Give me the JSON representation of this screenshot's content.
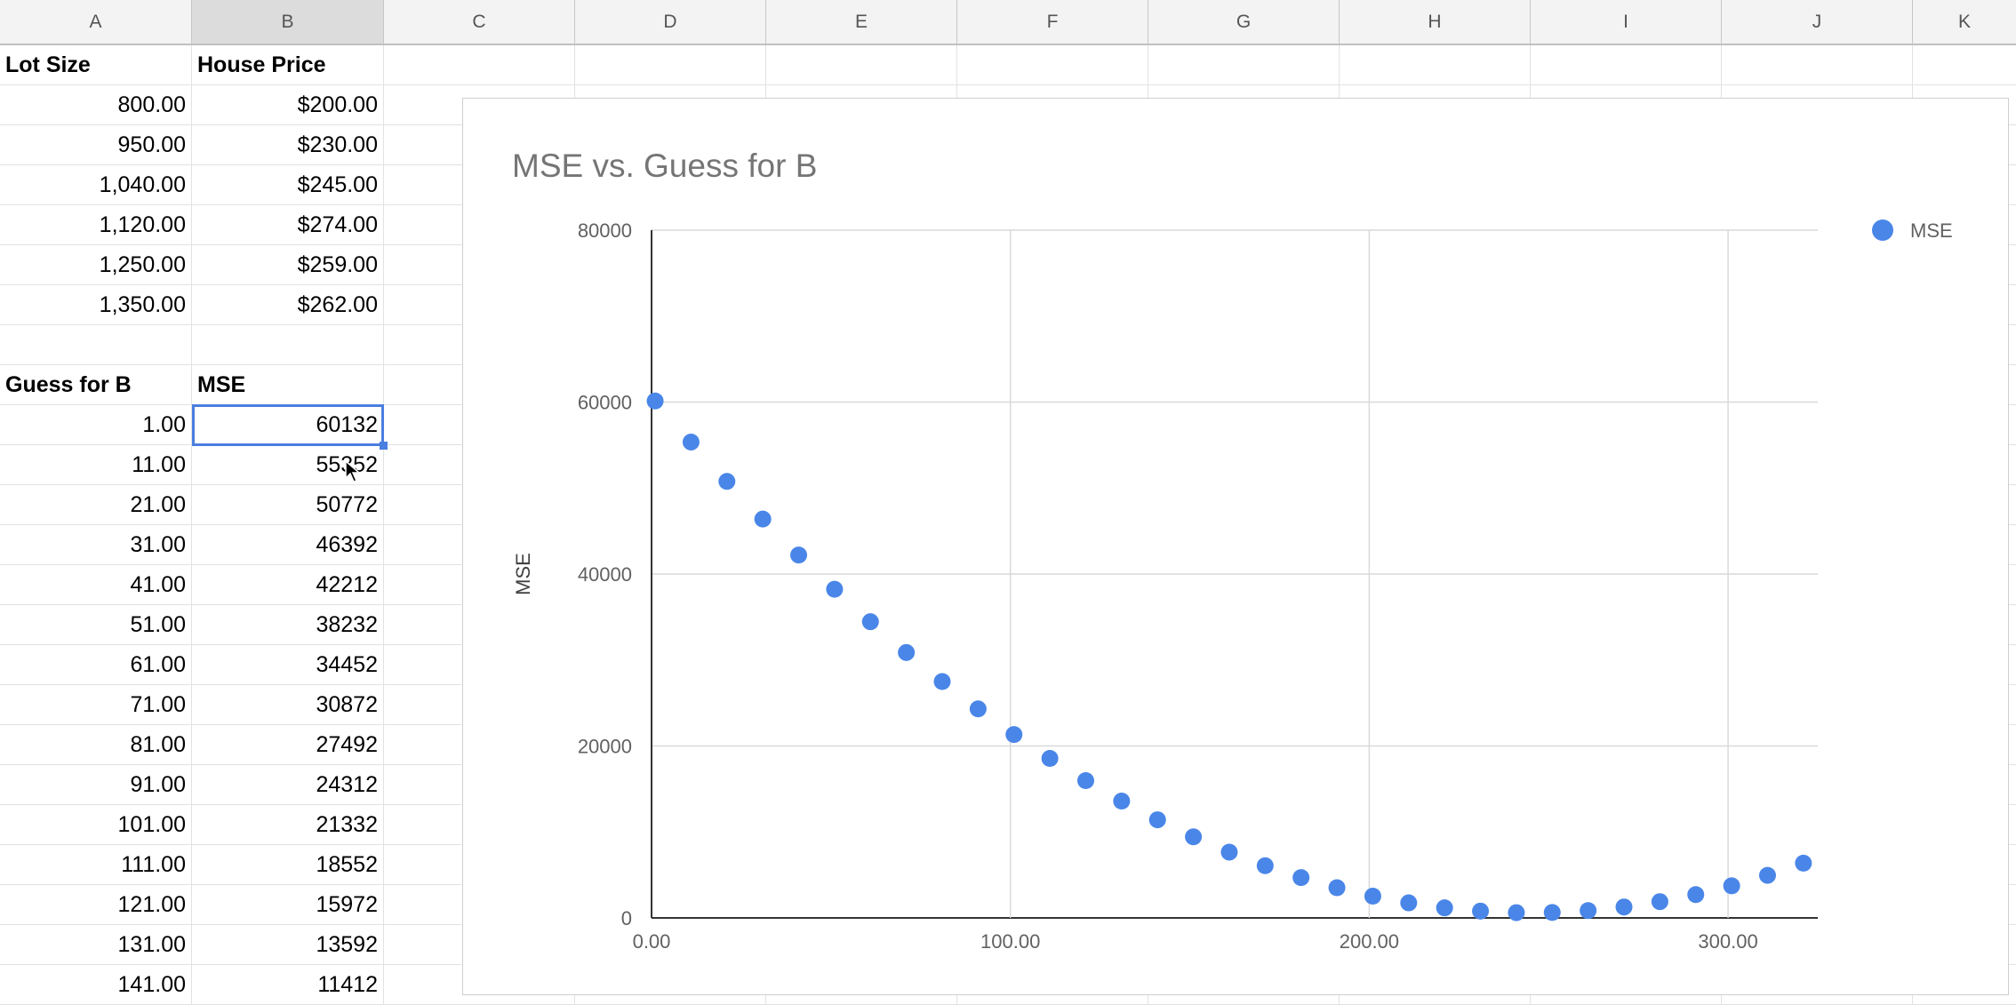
{
  "columns": [
    "A",
    "B",
    "C",
    "D",
    "E",
    "F",
    "G",
    "H",
    "I",
    "J",
    "K"
  ],
  "cells": {
    "r1": [
      "Lot Size",
      "House Price"
    ],
    "lots": [
      [
        "800.00",
        "$200.00"
      ],
      [
        "950.00",
        "$230.00"
      ],
      [
        "1,040.00",
        "$245.00"
      ],
      [
        "1,120.00",
        "$274.00"
      ],
      [
        "1,250.00",
        "$259.00"
      ],
      [
        "1,350.00",
        "$262.00"
      ]
    ],
    "r9": [
      "Guess for B",
      "MSE"
    ],
    "guesses": [
      [
        "1.00",
        "60132"
      ],
      [
        "11.00",
        "55352"
      ],
      [
        "21.00",
        "50772"
      ],
      [
        "31.00",
        "46392"
      ],
      [
        "41.00",
        "42212"
      ],
      [
        "51.00",
        "38232"
      ],
      [
        "61.00",
        "34452"
      ],
      [
        "71.00",
        "30872"
      ],
      [
        "81.00",
        "27492"
      ],
      [
        "91.00",
        "24312"
      ],
      [
        "101.00",
        "21332"
      ],
      [
        "111.00",
        "18552"
      ],
      [
        "121.00",
        "15972"
      ],
      [
        "131.00",
        "13592"
      ],
      [
        "141.00",
        "11412"
      ]
    ]
  },
  "chart_data": {
    "type": "scatter",
    "title": "MSE vs. Guess for B",
    "xlabel": "",
    "ylabel": "MSE",
    "xlim": [
      0,
      325
    ],
    "ylim": [
      0,
      80000
    ],
    "xticks": [
      "0.00",
      "100.00",
      "200.00",
      "300.00"
    ],
    "yticks": [
      "0",
      "20000",
      "40000",
      "60000",
      "80000"
    ],
    "grid": true,
    "legend": "right",
    "color": "#4a86e8",
    "series": [
      {
        "name": "MSE",
        "x": [
          1,
          11,
          21,
          31,
          41,
          51,
          61,
          71,
          81,
          91,
          101,
          111,
          121,
          131,
          141,
          151,
          161,
          171,
          181,
          191,
          201,
          211,
          221,
          231,
          241,
          251,
          261,
          271,
          281,
          291,
          301,
          311,
          321
        ],
        "y": [
          60132,
          55352,
          50772,
          46392,
          42212,
          38232,
          34452,
          30872,
          27492,
          24312,
          21332,
          18552,
          15972,
          13592,
          11412,
          9432,
          7652,
          6072,
          4692,
          3512,
          2532,
          1752,
          1172,
          792,
          612,
          632,
          852,
          1272,
          1892,
          2712,
          3732,
          4952,
          6372
        ]
      }
    ]
  }
}
